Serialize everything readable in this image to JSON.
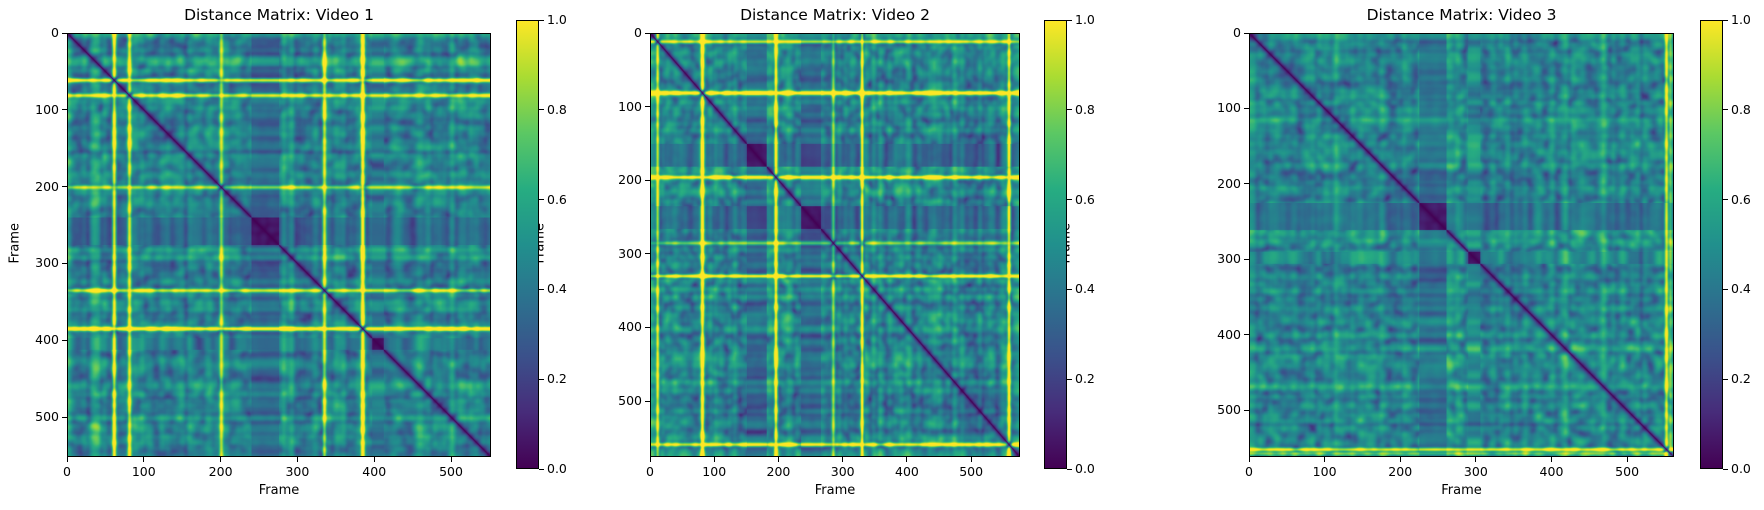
{
  "chart_data": [
    {
      "type": "heatmap",
      "title": "Distance Matrix: Video 1",
      "xlabel": "Frame",
      "ylabel": "Frame",
      "frames": 552,
      "xlim": [
        0,
        552
      ],
      "ylim": [
        552,
        0
      ],
      "x_ticks": [
        0,
        100,
        200,
        300,
        400,
        500
      ],
      "y_ticks": [
        0,
        100,
        200,
        300,
        400,
        500
      ],
      "colorbar": {
        "range": [
          0.0,
          1.0
        ],
        "ticks": [
          "0.0",
          "0.2",
          "0.4",
          "0.6",
          "0.8",
          "1.0"
        ],
        "colormap": "viridis"
      },
      "diagonal_value": 0.0,
      "bright_bands_frames": [
        80,
        200,
        335,
        385,
        60
      ],
      "dark_blocks_frames": [
        [
          240,
          275
        ],
        [
          398,
          412
        ]
      ]
    },
    {
      "type": "heatmap",
      "title": "Distance Matrix: Video 2",
      "xlabel": "Frame",
      "ylabel": "Frame",
      "frames": 576,
      "xlim": [
        0,
        576
      ],
      "ylim": [
        576,
        0
      ],
      "x_ticks": [
        0,
        100,
        200,
        300,
        400,
        500
      ],
      "y_ticks": [
        0,
        100,
        200,
        300,
        400,
        500
      ],
      "colorbar": {
        "range": [
          0.0,
          1.0
        ],
        "ticks": [
          "0.0",
          "0.2",
          "0.4",
          "0.6",
          "0.8",
          "1.0"
        ],
        "colormap": "viridis"
      },
      "diagonal_value": 0.0,
      "bright_bands_frames": [
        10,
        80,
        195,
        285,
        330,
        560
      ],
      "dark_blocks_frames": [
        [
          235,
          265
        ],
        [
          150,
          180
        ]
      ]
    },
    {
      "type": "heatmap",
      "title": "Distance Matrix: Video 3",
      "xlabel": "Frame",
      "ylabel": "Frame",
      "frames": 562,
      "xlim": [
        0,
        562
      ],
      "ylim": [
        562,
        0
      ],
      "x_ticks": [
        0,
        100,
        200,
        300,
        400,
        500
      ],
      "y_ticks": [
        0,
        100,
        200,
        300,
        400,
        500
      ],
      "colorbar": {
        "range": [
          0.0,
          1.0
        ],
        "ticks": [
          "0.0",
          "0.2",
          "0.4",
          "0.6",
          "0.8",
          "1.0"
        ],
        "colormap": "viridis"
      },
      "diagonal_value": 0.0,
      "bright_bands_frames": [
        553,
        558
      ],
      "dark_blocks_frames": [
        [
          225,
          260
        ],
        [
          290,
          305
        ]
      ]
    }
  ]
}
